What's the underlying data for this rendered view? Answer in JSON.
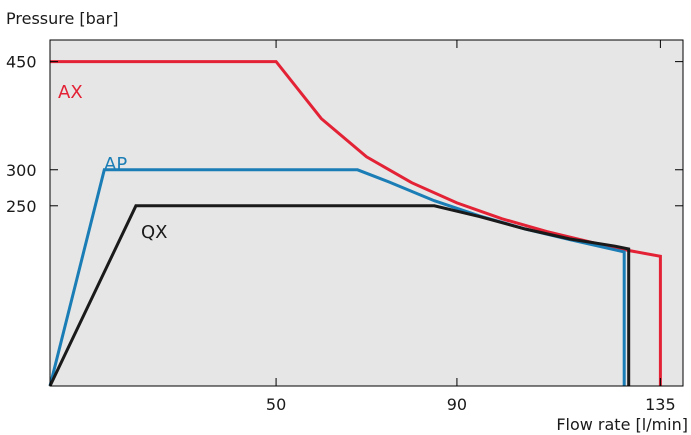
{
  "chart_data": {
    "type": "line",
    "ylabel": "Pressure [bar]",
    "xlabel": "Flow rate [l/min]",
    "xlim": [
      0,
      140
    ],
    "ylim": [
      0,
      480
    ],
    "x_ticks": [
      50,
      90,
      135
    ],
    "y_ticks": [
      450,
      300,
      250
    ],
    "grid": false,
    "plot_background": "#e6e6e6",
    "series": [
      {
        "name": "AX",
        "color": "#e32236",
        "x": [
          0,
          50,
          60,
          70,
          80,
          90,
          100,
          110,
          120,
          128,
          135,
          135
        ],
        "y": [
          450,
          450,
          371,
          318,
          282,
          254,
          232,
          214,
          199,
          188,
          180,
          0
        ]
      },
      {
        "name": "AP",
        "color": "#1a7db5",
        "x": [
          0,
          12,
          68,
          75,
          85,
          95,
          105,
          115,
          127,
          127
        ],
        "y": [
          0,
          300,
          300,
          283,
          257,
          236,
          218,
          203,
          186,
          0
        ]
      },
      {
        "name": "QX",
        "color": "#1a1a1a",
        "x": [
          0,
          19,
          85,
          95,
          105,
          115,
          125,
          128,
          128
        ],
        "y": [
          0,
          250,
          250,
          235,
          218,
          204,
          194,
          190,
          0
        ]
      }
    ]
  }
}
